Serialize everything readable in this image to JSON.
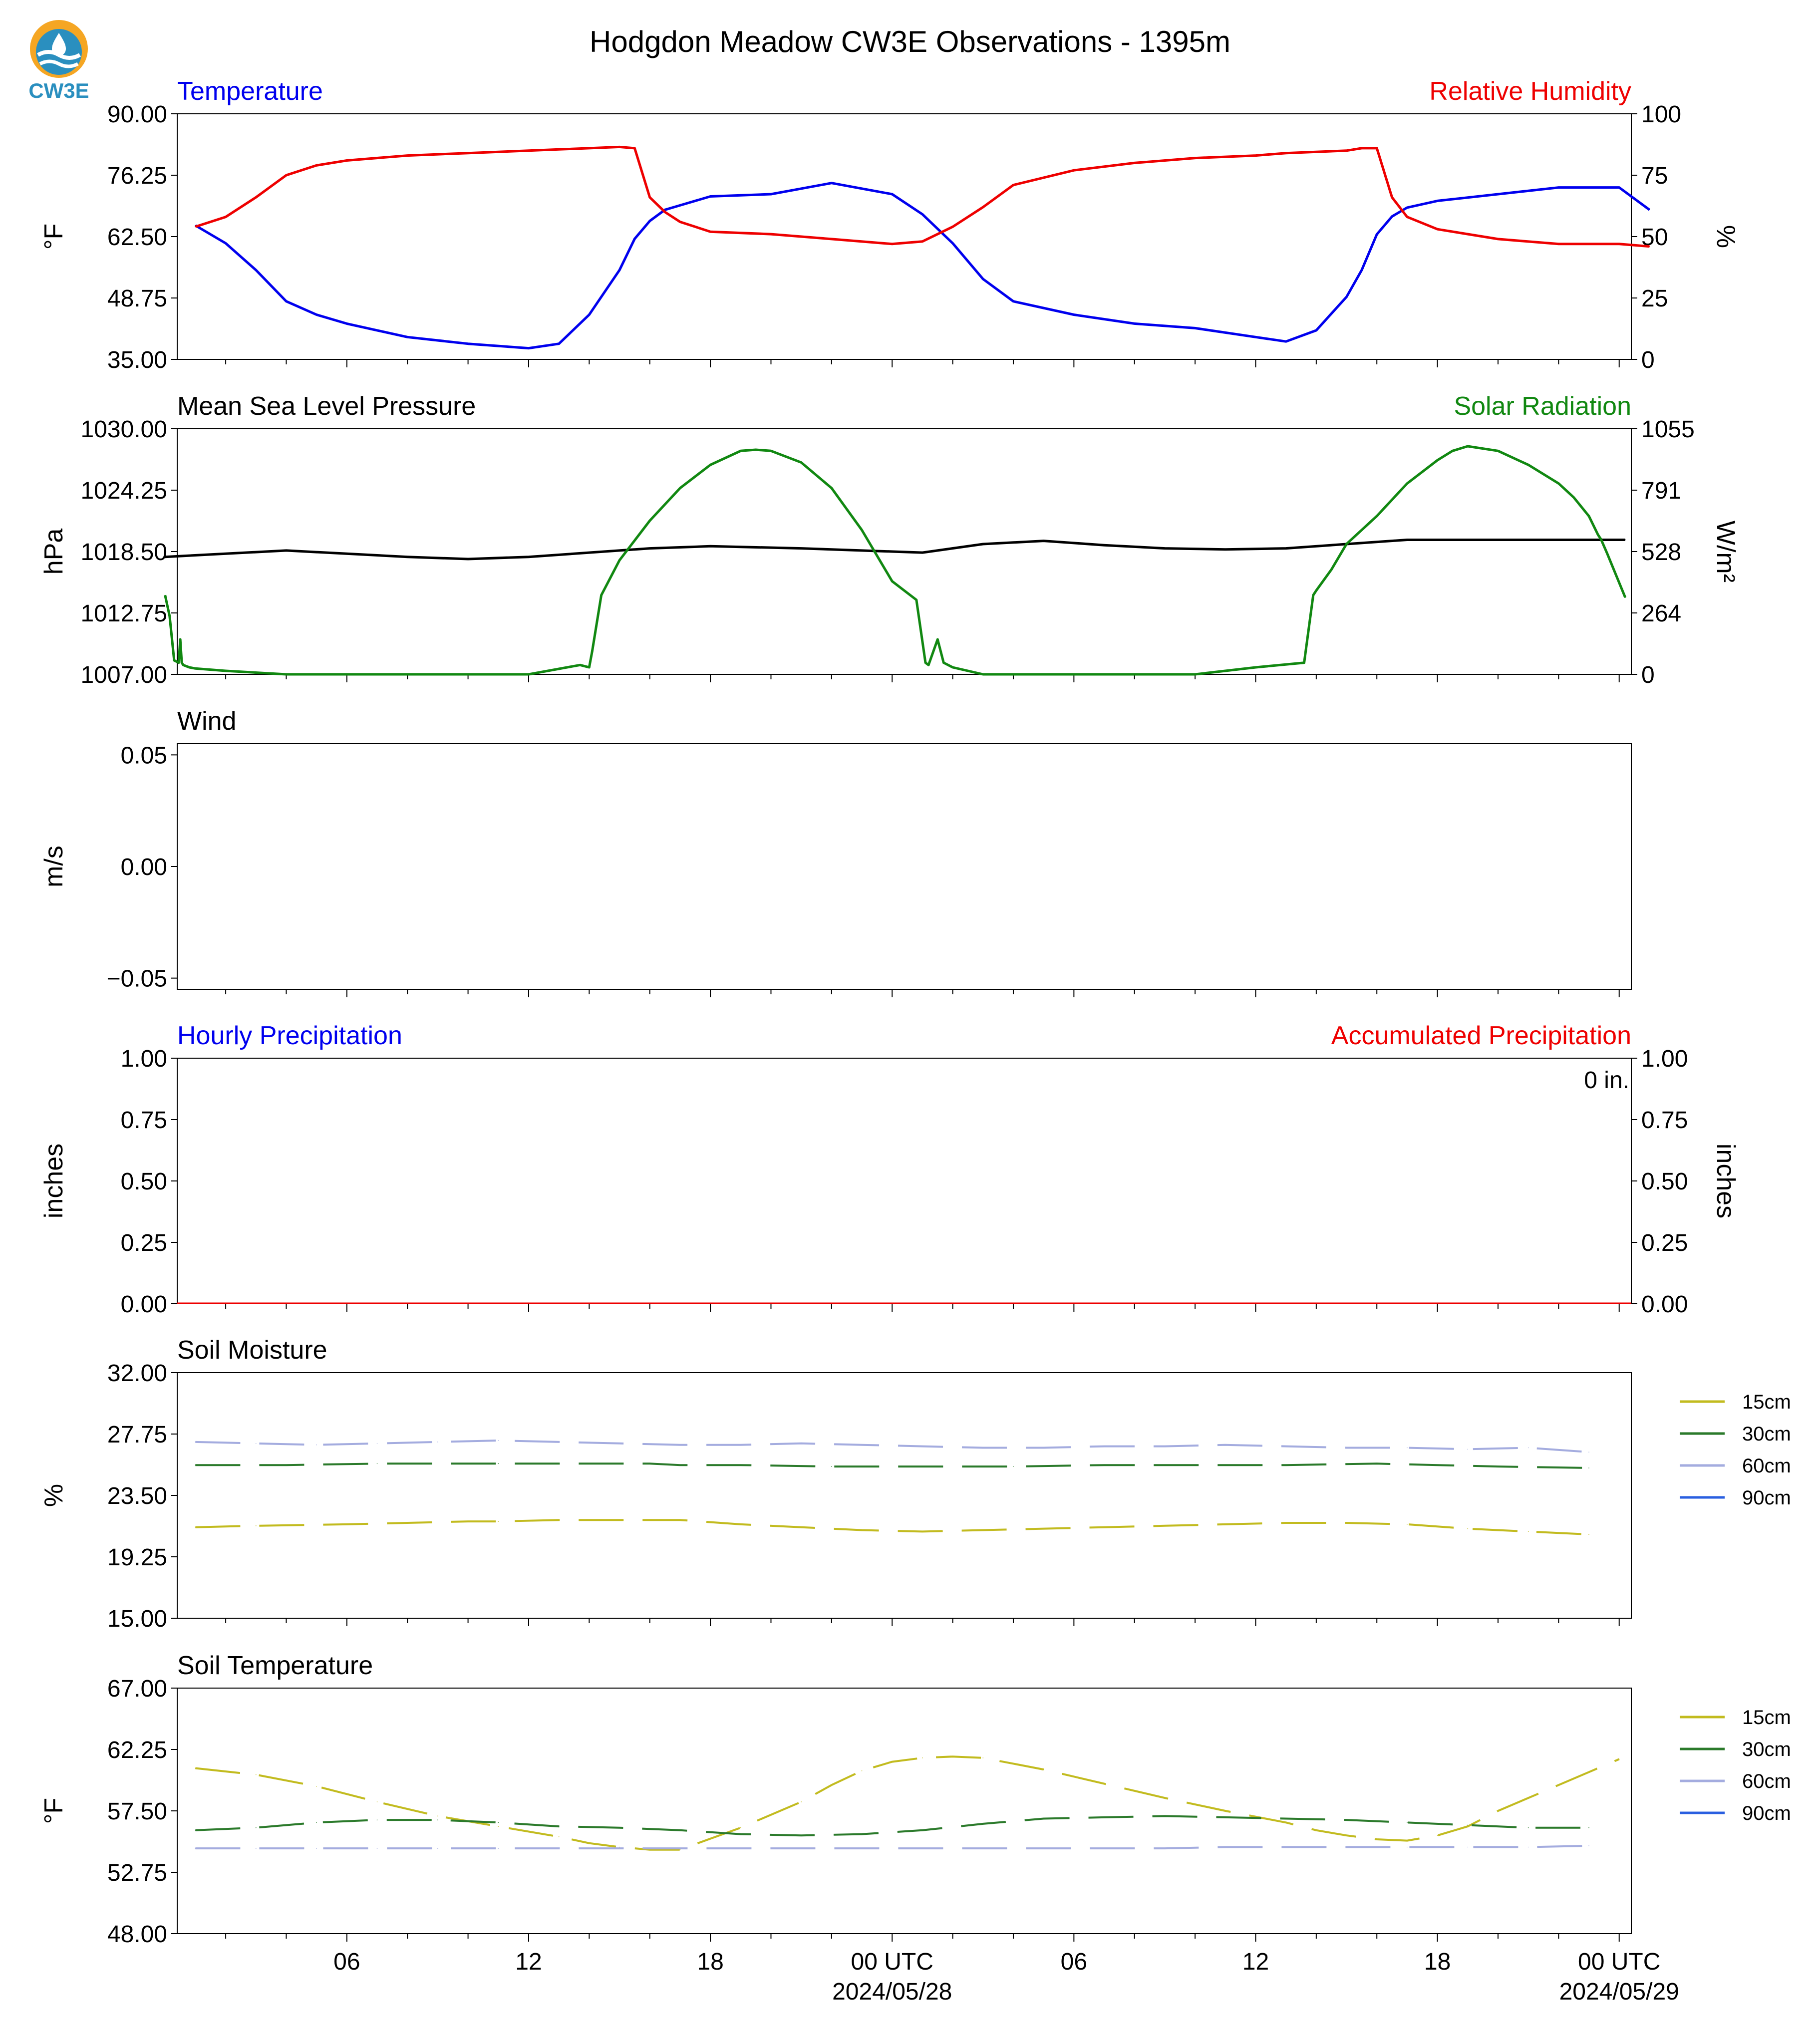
{
  "logo": {
    "text": "CW3E",
    "name": "cw3e-logo"
  },
  "figure_title": "Hodgdon Meadow CW3E Observations - 1395m",
  "x_axis": {
    "ticks": [
      "06",
      "12",
      "18",
      "00 UTC",
      "06",
      "12",
      "18",
      "00 UTC"
    ],
    "date_labels": [
      "2024/05/28",
      "2024/05/29"
    ]
  },
  "legend_labels": [
    "15cm",
    "30cm",
    "60cm",
    "90cm"
  ],
  "colors": {
    "blue": "#0000ee",
    "red": "#ee0000",
    "green": "#118811",
    "black": "#000000",
    "s15": "#c2bb1f",
    "s30": "#2b7a2b",
    "s60": "#a4acdf",
    "s90": "#2a5fe0"
  },
  "chart_data": [
    {
      "type": "line",
      "title_left": "Temperature",
      "title_right": "Relative Humidity",
      "ylabel_left": "°F",
      "ylabel_right": "%",
      "ylim_left": [
        35,
        90
      ],
      "ylim_right": [
        0,
        100
      ],
      "yticks_left": [
        "90.00",
        "76.25",
        "62.50",
        "48.75",
        "35.00"
      ],
      "yticks_right": [
        "100",
        "75",
        "50",
        "25",
        "0"
      ],
      "x_hours": [
        1,
        2,
        3,
        4,
        5,
        6,
        8,
        10,
        12,
        13,
        14,
        15,
        15.5,
        16,
        16.5,
        17,
        18,
        20,
        22,
        24,
        25,
        26,
        27,
        28,
        30,
        32,
        34,
        36,
        37,
        38,
        39,
        39.5,
        40,
        40.5,
        41,
        42,
        44,
        46,
        48,
        49
      ],
      "series": [
        {
          "name": "Temperature",
          "axis": "left",
          "color": "blue",
          "values": [
            65,
            61,
            55,
            48,
            45,
            43,
            40,
            38.5,
            37.5,
            38.5,
            45,
            55,
            62,
            66,
            68.5,
            69.5,
            71.5,
            72,
            74.5,
            72,
            67.5,
            61,
            53,
            48,
            45,
            43,
            42,
            40,
            39,
            41.5,
            49,
            55,
            63,
            67,
            69,
            70.5,
            72,
            73.5,
            73.5,
            68.5
          ]
        },
        {
          "name": "Relative Humidity",
          "axis": "right",
          "color": "red",
          "values": [
            54,
            58,
            66,
            75,
            79,
            81,
            83,
            84,
            85,
            85.5,
            86,
            86.5,
            86,
            66,
            60,
            56,
            52,
            51,
            49,
            47,
            48,
            54,
            62,
            71,
            77,
            80,
            82,
            83,
            84,
            84.5,
            85,
            86,
            86,
            66,
            58,
            53,
            49,
            47,
            47,
            46
          ]
        }
      ]
    },
    {
      "type": "line",
      "title_left": "Mean Sea Level Pressure",
      "title_right": "Solar Radiation",
      "ylabel_left": "hPa",
      "ylabel_right": "W/m²",
      "ylim_left": [
        1007,
        1030
      ],
      "ylim_right": [
        0,
        1055
      ],
      "yticks_left": [
        "1030.00",
        "1024.25",
        "1018.50",
        "1012.75",
        "1007.00"
      ],
      "yticks_right": [
        "1055",
        "791",
        "528",
        "264",
        "0"
      ],
      "series": [
        {
          "name": "Mean Sea Level Pressure",
          "axis": "left",
          "color": "black",
          "x": [
            0,
            4,
            8,
            10,
            12,
            16,
            18,
            21,
            24,
            25,
            27,
            29,
            31,
            33,
            35,
            37,
            39,
            41,
            44,
            47,
            48.2
          ],
          "values": [
            1018.0,
            1018.6,
            1018.0,
            1017.8,
            1018.0,
            1018.8,
            1019.0,
            1018.8,
            1018.5,
            1018.4,
            1019.2,
            1019.5,
            1019.1,
            1018.8,
            1018.7,
            1018.8,
            1019.2,
            1019.6,
            1019.6,
            1019.6,
            1019.6
          ]
        },
        {
          "name": "Solar Radiation",
          "axis": "right",
          "color": "green",
          "x": [
            0,
            0.15,
            0.3,
            0.45,
            0.5,
            0.55,
            0.6,
            0.8,
            1,
            2,
            4,
            8,
            12,
            13.7,
            14,
            14.1,
            14.4,
            15,
            16,
            17,
            18,
            19,
            19.5,
            20,
            21,
            22,
            23,
            24,
            24.8,
            25.1,
            25.2,
            25.5,
            25.7,
            26,
            27,
            30,
            34,
            36,
            37.6,
            37.9,
            38,
            38.5,
            39,
            40,
            41,
            42,
            42.5,
            43,
            44,
            45,
            46,
            46.5,
            47,
            47.3,
            47.4,
            47.6,
            48.2
          ],
          "values": [
            340,
            250,
            60,
            50,
            150,
            50,
            40,
            30,
            25,
            15,
            0,
            0,
            0,
            40,
            30,
            100,
            340,
            490,
            660,
            800,
            900,
            960,
            965,
            960,
            910,
            800,
            620,
            400,
            320,
            50,
            40,
            150,
            50,
            30,
            0,
            0,
            0,
            30,
            50,
            340,
            360,
            450,
            560,
            680,
            820,
            920,
            960,
            980,
            960,
            900,
            820,
            760,
            680,
            600,
            580,
            520,
            330
          ]
        }
      ]
    },
    {
      "type": "line",
      "title_left": "Wind",
      "ylabel_left": "m/s",
      "ylim_left": [
        -0.055,
        0.055
      ],
      "yticks_left": [
        "0.05",
        "0.00",
        "−0.05"
      ],
      "series": []
    },
    {
      "type": "bar",
      "title_left": "Hourly Precipitation",
      "title_right": "Accumulated Precipitation",
      "ylabel_left": "inches",
      "ylabel_right": "inches",
      "ylim_left": [
        0,
        1
      ],
      "ylim_right": [
        0,
        1
      ],
      "yticks_left": [
        "1.00",
        "0.75",
        "0.50",
        "0.25",
        "0.00"
      ],
      "yticks_right": [
        "1.00",
        "0.75",
        "0.50",
        "0.25",
        "0.00"
      ],
      "annotation": "0 in.",
      "series": [
        {
          "name": "Hourly Precipitation",
          "color": "blue",
          "values": [
            0
          ]
        },
        {
          "name": "Accumulated Precipitation",
          "color": "red",
          "values": [
            0
          ]
        }
      ]
    },
    {
      "type": "line",
      "title_left": "Soil Moisture",
      "ylabel_left": "%",
      "ylim_left": [
        15,
        32
      ],
      "yticks_left": [
        "32.00",
        "27.75",
        "23.50",
        "19.25",
        "15.00"
      ],
      "legend": [
        "15cm",
        "30cm",
        "60cm",
        "90cm"
      ],
      "series": [
        {
          "name": "15cm",
          "color": "s15",
          "x": [
            1,
            3,
            6,
            8,
            10,
            11,
            13,
            15,
            17,
            19,
            21,
            23,
            25,
            27,
            29,
            31,
            33,
            35,
            37,
            39,
            41,
            43,
            45,
            47
          ],
          "values": [
            21.3,
            21.4,
            21.5,
            21.6,
            21.7,
            21.7,
            21.8,
            21.8,
            21.8,
            21.5,
            21.3,
            21.1,
            21.0,
            21.1,
            21.2,
            21.3,
            21.4,
            21.5,
            21.6,
            21.6,
            21.5,
            21.2,
            21.0,
            20.8
          ]
        },
        {
          "name": "30cm",
          "color": "s30",
          "x": [
            1,
            4,
            7,
            10,
            11,
            13,
            16,
            17,
            19,
            22,
            25,
            28,
            31,
            34,
            37,
            40,
            42,
            44,
            47
          ],
          "values": [
            25.6,
            25.6,
            25.7,
            25.7,
            25.7,
            25.7,
            25.7,
            25.6,
            25.6,
            25.5,
            25.5,
            25.5,
            25.6,
            25.6,
            25.6,
            25.7,
            25.6,
            25.5,
            25.4
          ]
        },
        {
          "name": "60cm",
          "color": "s60",
          "x": [
            1,
            3,
            5,
            7,
            9,
            11,
            13,
            15,
            17,
            19,
            21,
            23,
            25,
            27,
            29,
            31,
            33,
            35,
            37,
            39,
            41,
            43,
            45,
            47
          ],
          "values": [
            27.2,
            27.1,
            27.0,
            27.1,
            27.2,
            27.3,
            27.2,
            27.1,
            27.0,
            27.0,
            27.1,
            27.0,
            26.9,
            26.8,
            26.8,
            26.9,
            26.9,
            27.0,
            26.9,
            26.8,
            26.8,
            26.7,
            26.8,
            26.5
          ]
        },
        {
          "name": "90cm",
          "color": "s90",
          "x": [],
          "values": []
        }
      ]
    },
    {
      "type": "line",
      "title_left": "Soil Temperature",
      "ylabel_left": "°F",
      "ylim_left": [
        48,
        67
      ],
      "yticks_left": [
        "67.00",
        "62.25",
        "57.50",
        "52.75",
        "48.00"
      ],
      "legend": [
        "15cm",
        "30cm",
        "60cm",
        "90cm"
      ],
      "series": [
        {
          "name": "15cm",
          "color": "s15",
          "x": [
            1,
            3,
            5,
            7,
            9,
            11,
            13,
            14,
            15,
            16,
            17,
            19,
            21,
            22,
            23,
            24,
            25,
            26,
            27,
            29,
            31,
            33,
            35,
            37,
            38,
            39,
            40,
            41,
            42,
            43,
            44,
            46,
            48
          ],
          "values": [
            60.8,
            60.3,
            59.4,
            58.2,
            57.1,
            56.3,
            55.5,
            55.0,
            54.7,
            54.5,
            54.5,
            56.2,
            58.2,
            59.5,
            60.6,
            61.3,
            61.6,
            61.7,
            61.6,
            60.7,
            59.6,
            58.5,
            57.5,
            56.6,
            56.0,
            55.6,
            55.3,
            55.2,
            55.6,
            56.3,
            57.5,
            59.5,
            61.5
          ]
        },
        {
          "name": "30cm",
          "color": "s30",
          "x": [
            1,
            3,
            5,
            7,
            9,
            11,
            13,
            15,
            17,
            19,
            21,
            23,
            25,
            27,
            29,
            31,
            33,
            35,
            37,
            39,
            41,
            43,
            45,
            47
          ],
          "values": [
            56.0,
            56.2,
            56.6,
            56.8,
            56.8,
            56.6,
            56.3,
            56.2,
            56.0,
            55.7,
            55.6,
            55.7,
            56.0,
            56.5,
            56.9,
            57.0,
            57.1,
            57.0,
            56.9,
            56.8,
            56.6,
            56.4,
            56.2,
            56.2
          ]
        },
        {
          "name": "60cm",
          "color": "s60",
          "x": [
            1,
            3,
            5,
            7,
            9,
            11,
            13,
            15,
            17,
            19,
            21,
            23,
            25,
            27,
            29,
            31,
            33,
            35,
            37,
            39,
            41,
            43,
            45,
            47
          ],
          "values": [
            54.6,
            54.6,
            54.6,
            54.6,
            54.6,
            54.6,
            54.6,
            54.6,
            54.6,
            54.6,
            54.6,
            54.6,
            54.6,
            54.6,
            54.6,
            54.6,
            54.6,
            54.7,
            54.7,
            54.7,
            54.7,
            54.7,
            54.7,
            54.8
          ]
        },
        {
          "name": "90cm",
          "color": "s90",
          "x": [],
          "values": []
        }
      ]
    }
  ]
}
